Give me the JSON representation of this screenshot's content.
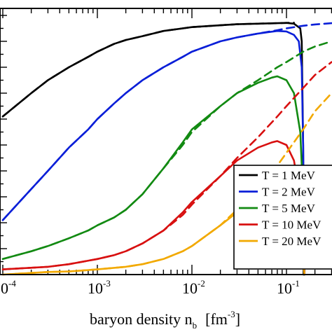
{
  "chart_data": {
    "type": "line",
    "title": "",
    "xlabel": "baryon density  n",
    "xlabel_sub": "b",
    "xlabel_unit_pre": "[fm",
    "xlabel_unit_exp": "-3",
    "xlabel_unit_post": "]",
    "ylabel": "",
    "xscale": "log",
    "xlim": [
      0.0001,
      0.3
    ],
    "ylim": [
      0,
      1
    ],
    "grid": false,
    "legend_position": "lower-right",
    "x_tick_labels": [
      {
        "base": "10",
        "exp": "-4",
        "value": 0.0001
      },
      {
        "base": "10",
        "exp": "-3",
        "value": 0.001
      },
      {
        "base": "10",
        "exp": "-2",
        "value": 0.01
      },
      {
        "base": "10",
        "exp": "-1",
        "value": 0.1
      }
    ],
    "series": [
      {
        "name": "T = 1 MeV",
        "color": "#000000",
        "style": "solid",
        "x": [
          0.0001,
          0.0002,
          0.0003,
          0.0005,
          0.0008,
          0.001,
          0.0015,
          0.002,
          0.003,
          0.005,
          0.008,
          0.01,
          0.02,
          0.03,
          0.05,
          0.08,
          0.1,
          0.12,
          0.14,
          0.145,
          0.15,
          0.152
        ],
        "y": [
          0.61,
          0.7,
          0.75,
          0.8,
          0.84,
          0.86,
          0.89,
          0.905,
          0.92,
          0.94,
          0.95,
          0.955,
          0.962,
          0.966,
          0.968,
          0.97,
          0.971,
          0.968,
          0.95,
          0.9,
          0.5,
          0.0
        ]
      },
      {
        "name": "T = 1 MeV",
        "color": "#000000",
        "style": "dashed",
        "x": [
          0.0001,
          0.0002,
          0.0003,
          0.0005,
          0.0008,
          0.001,
          0.0015,
          0.002,
          0.003,
          0.005,
          0.008,
          0.01,
          0.02,
          0.03,
          0.05,
          0.08,
          0.1,
          0.12
        ],
        "y": [
          0.61,
          0.7,
          0.75,
          0.8,
          0.84,
          0.86,
          0.89,
          0.905,
          0.92,
          0.94,
          0.95,
          0.955,
          0.962,
          0.966,
          0.968,
          0.97,
          0.971,
          0.972
        ]
      },
      {
        "name": "T = 2 MeV",
        "color": "#0a1fd8",
        "style": "solid",
        "x": [
          0.0001,
          0.0002,
          0.0003,
          0.0005,
          0.0008,
          0.001,
          0.0015,
          0.002,
          0.003,
          0.005,
          0.008,
          0.01,
          0.02,
          0.03,
          0.05,
          0.08,
          0.1,
          0.12,
          0.135,
          0.145,
          0.15,
          0.155
        ],
        "y": [
          0.21,
          0.33,
          0.4,
          0.49,
          0.56,
          0.6,
          0.66,
          0.7,
          0.75,
          0.8,
          0.84,
          0.86,
          0.9,
          0.915,
          0.93,
          0.94,
          0.938,
          0.925,
          0.9,
          0.8,
          0.5,
          0.0
        ]
      },
      {
        "name": "T = 2 MeV",
        "color": "#0a1fd8",
        "style": "dashed",
        "x": [
          0.0001,
          0.0002,
          0.0003,
          0.0005,
          0.0008,
          0.001,
          0.0015,
          0.002,
          0.003,
          0.005,
          0.008,
          0.01,
          0.02,
          0.03,
          0.05,
          0.08,
          0.1,
          0.15,
          0.2,
          0.3
        ],
        "y": [
          0.21,
          0.33,
          0.4,
          0.49,
          0.56,
          0.6,
          0.66,
          0.7,
          0.75,
          0.8,
          0.84,
          0.86,
          0.9,
          0.915,
          0.93,
          0.943,
          0.95,
          0.96,
          0.965,
          0.97
        ]
      },
      {
        "name": "T = 5 MeV",
        "color": "#128a12",
        "style": "solid",
        "x": [
          0.0001,
          0.0002,
          0.0003,
          0.0005,
          0.0008,
          0.001,
          0.0015,
          0.002,
          0.003,
          0.005,
          0.008,
          0.01,
          0.02,
          0.03,
          0.05,
          0.07,
          0.08,
          0.1,
          0.12,
          0.14,
          0.15,
          0.155
        ],
        "y": [
          0.06,
          0.09,
          0.11,
          0.14,
          0.17,
          0.19,
          0.22,
          0.25,
          0.31,
          0.41,
          0.51,
          0.56,
          0.65,
          0.7,
          0.74,
          0.76,
          0.765,
          0.75,
          0.7,
          0.55,
          0.3,
          0.0
        ]
      },
      {
        "name": "T = 5 MeV",
        "color": "#128a12",
        "style": "dashed",
        "x": [
          0.0001,
          0.0002,
          0.0003,
          0.0005,
          0.0008,
          0.001,
          0.0015,
          0.002,
          0.003,
          0.005,
          0.008,
          0.01,
          0.02,
          0.03,
          0.05,
          0.08,
          0.1,
          0.15,
          0.2,
          0.3
        ],
        "y": [
          0.06,
          0.09,
          0.11,
          0.14,
          0.17,
          0.19,
          0.22,
          0.25,
          0.31,
          0.41,
          0.5,
          0.55,
          0.65,
          0.7,
          0.75,
          0.8,
          0.82,
          0.86,
          0.88,
          0.9
        ]
      },
      {
        "name": "T = 10 MeV",
        "color": "#d81010",
        "style": "solid",
        "x": [
          0.0001,
          0.0003,
          0.0005,
          0.001,
          0.0015,
          0.002,
          0.003,
          0.005,
          0.008,
          0.01,
          0.02,
          0.03,
          0.05,
          0.07,
          0.08,
          0.1,
          0.12,
          0.14,
          0.15,
          0.155
        ],
        "y": [
          0.02,
          0.03,
          0.04,
          0.06,
          0.075,
          0.09,
          0.12,
          0.17,
          0.24,
          0.28,
          0.38,
          0.44,
          0.49,
          0.51,
          0.515,
          0.5,
          0.44,
          0.3,
          0.15,
          0.0
        ]
      },
      {
        "name": "T = 10 MeV",
        "color": "#d81010",
        "style": "dashed",
        "x": [
          0.0001,
          0.0003,
          0.0005,
          0.001,
          0.0015,
          0.002,
          0.003,
          0.005,
          0.008,
          0.01,
          0.02,
          0.03,
          0.05,
          0.08,
          0.1,
          0.15,
          0.2,
          0.3
        ],
        "y": [
          0.02,
          0.03,
          0.04,
          0.06,
          0.075,
          0.09,
          0.12,
          0.17,
          0.23,
          0.27,
          0.38,
          0.45,
          0.53,
          0.61,
          0.65,
          0.72,
          0.77,
          0.82
        ]
      },
      {
        "name": "T = 20 MeV",
        "color": "#f2a900",
        "style": "solid",
        "x": [
          0.0001,
          0.0003,
          0.0005,
          0.001,
          0.002,
          0.003,
          0.005,
          0.008,
          0.01,
          0.02,
          0.03,
          0.05,
          0.07,
          0.08,
          0.1,
          0.12,
          0.13,
          0.14,
          0.15,
          0.155
        ],
        "y": [
          0.0,
          0.01,
          0.012,
          0.02,
          0.03,
          0.04,
          0.06,
          0.09,
          0.11,
          0.19,
          0.24,
          0.3,
          0.32,
          0.325,
          0.31,
          0.25,
          0.2,
          0.12,
          0.05,
          0.0
        ]
      },
      {
        "name": "T = 20 MeV",
        "color": "#f2a900",
        "style": "dashed",
        "x": [
          0.0001,
          0.0003,
          0.0005,
          0.001,
          0.002,
          0.003,
          0.005,
          0.008,
          0.01,
          0.02,
          0.03,
          0.05,
          0.08,
          0.1,
          0.15,
          0.2,
          0.3
        ],
        "y": [
          0.0,
          0.01,
          0.012,
          0.02,
          0.03,
          0.04,
          0.06,
          0.09,
          0.11,
          0.19,
          0.25,
          0.33,
          0.42,
          0.47,
          0.56,
          0.63,
          0.7
        ]
      }
    ],
    "legend": [
      {
        "label": "T = 1 MeV",
        "color": "#000000"
      },
      {
        "label": "T = 2 MeV",
        "color": "#0a1fd8"
      },
      {
        "label": "T = 5 MeV",
        "color": "#128a12"
      },
      {
        "label": "T = 10 MeV",
        "color": "#d81010"
      },
      {
        "label": "T = 20 MeV",
        "color": "#f2a900"
      }
    ]
  }
}
